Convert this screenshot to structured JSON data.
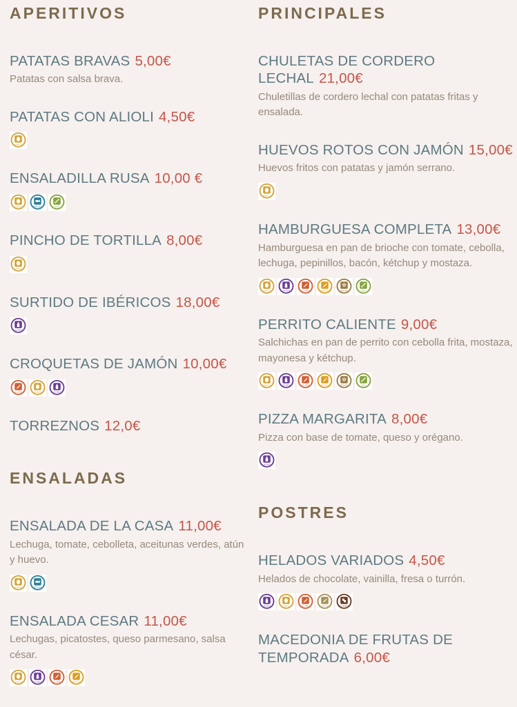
{
  "page": {
    "background": "#f6f0ee",
    "colors": {
      "section_title": "#7d6a4e",
      "item_name": "#5d7a82",
      "item_price": "#c4564a",
      "item_description": "#97897b"
    }
  },
  "allergens": {
    "huevos": {
      "label": "HUEVOS",
      "color": "#d3a43a"
    },
    "pescado": {
      "label": "PESCADO",
      "color": "#2c7f99"
    },
    "soja": {
      "label": "SOJA",
      "color": "#85a43b"
    },
    "lacteos": {
      "label": "LÁCTEOS",
      "color": "#6a3e96"
    },
    "gluten": {
      "label": "GLUTEN",
      "color": "#cf6136"
    },
    "mostaza": {
      "label": "MOSTAZA",
      "color": "#dd9e23"
    },
    "sesamo": {
      "label": "SÉSAMO",
      "color": "#9c7a43"
    },
    "frutos_cascara": {
      "label": "F. CÁSCARA",
      "color": "#a89058"
    },
    "cacahuetes": {
      "label": "CACAHUETES",
      "color": "#6d3b22"
    }
  },
  "columns": [
    {
      "sections": [
        {
          "title": "APERITIVOS",
          "items": [
            {
              "name": "PATATAS BRAVAS",
              "price": "5,00€",
              "description": "Patatas con salsa brava.",
              "allergens": []
            },
            {
              "name": "PATATAS CON ALIOLI",
              "price": "4,50€",
              "description": "",
              "allergens": [
                "huevos"
              ]
            },
            {
              "name": "ENSALADILLA RUSA",
              "price": "10,00 €",
              "description": "",
              "allergens": [
                "huevos",
                "pescado",
                "soja"
              ]
            },
            {
              "name": "PINCHO DE TORTILLA",
              "price": "8,00€",
              "description": "",
              "allergens": [
                "huevos"
              ]
            },
            {
              "name": "SURTIDO DE IBÉRICOS",
              "price": "18,00€",
              "description": "",
              "allergens": [
                "lacteos"
              ]
            },
            {
              "name": "CROQUETAS DE JAMÓN",
              "price": "10,00€",
              "description": "",
              "allergens": [
                "gluten",
                "huevos",
                "lacteos"
              ]
            },
            {
              "name": "TORREZNOS",
              "price": "12,0€",
              "description": "",
              "allergens": []
            }
          ]
        },
        {
          "title": "ENSALADAS",
          "items": [
            {
              "name": "ENSALADA DE LA CASA",
              "price": "11,00€",
              "description": "Lechuga, tomate, cebolleta, aceitunas verdes, atún y huevo.",
              "allergens": [
                "huevos",
                "pescado"
              ]
            },
            {
              "name": "ENSALADA CESAR",
              "price": "11,00€",
              "description": "Lechugas, picatostes, queso parmesano, salsa césar.",
              "allergens": [
                "huevos",
                "lacteos",
                "gluten",
                "mostaza"
              ]
            }
          ]
        }
      ]
    },
    {
      "sections": [
        {
          "title": "PRINCIPALES",
          "items": [
            {
              "name": "CHULETAS DE CORDERO LECHAL",
              "price": "21,00€",
              "description": "Chuletillas de cordero lechal con patatas fritas y ensalada.",
              "allergens": []
            },
            {
              "name": "HUEVOS ROTOS CON JAMÓN",
              "price": "15,00€",
              "description": "Huevos fritos con patatas y jamón serrano.",
              "allergens": [
                "huevos"
              ]
            },
            {
              "name": "HAMBURGUESA COMPLETA",
              "price": "13,00€",
              "description": "Hamburguesa en pan de brioche con tomate, cebolla, lechuga, pepinillos, bacón, kétchup y mostaza.",
              "allergens": [
                "huevos",
                "lacteos",
                "gluten",
                "mostaza",
                "sesamo",
                "soja"
              ]
            },
            {
              "name": "PERRITO CALIENTE",
              "price": "9,00€",
              "description": "Salchichas en pan de perrito con cebolla frita, mostaza, mayonesa y kétchup.",
              "allergens": [
                "huevos",
                "lacteos",
                "gluten",
                "mostaza",
                "sesamo",
                "soja"
              ]
            },
            {
              "name": "PIZZA MARGARITA",
              "price": "8,00€",
              "description": "Pizza con base de tomate, queso y orégano.",
              "allergens": [
                "lacteos"
              ]
            }
          ]
        },
        {
          "title": "POSTRES",
          "items": [
            {
              "name": "HELADOS VARIADOS",
              "price": "4,50€",
              "description": "Helados de chocolate, vainilla, fresa o turrón.",
              "allergens": [
                "lacteos",
                "huevos",
                "gluten",
                "frutos_cascara",
                "cacahuetes"
              ]
            },
            {
              "name": "MACEDONIA DE FRUTAS DE TEMPORADA",
              "price": "6,00€",
              "description": "",
              "allergens": []
            }
          ]
        }
      ]
    }
  ]
}
